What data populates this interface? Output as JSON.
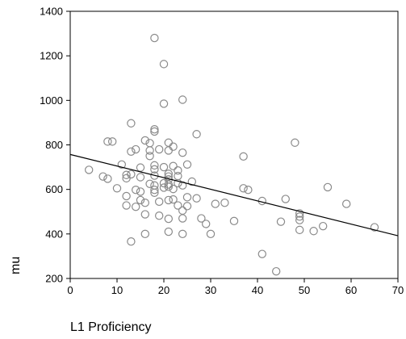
{
  "chart_data": {
    "type": "scatter",
    "title": "",
    "xlabel": "L1 Proficiency",
    "ylabel": "mu",
    "xlim": [
      0,
      70
    ],
    "ylim": [
      200,
      1400
    ],
    "xticks": [
      0,
      10,
      20,
      30,
      40,
      50,
      60,
      70
    ],
    "yticks": [
      200,
      400,
      600,
      800,
      1000,
      1200,
      1400
    ],
    "grid": false,
    "marker": "open-circle",
    "marker_color": "#8a8a8a",
    "line_color": "#000000",
    "regression_line": {
      "x": [
        0,
        70
      ],
      "y": [
        757,
        392
      ]
    },
    "points": [
      [
        18,
        1280
      ],
      [
        20,
        1163
      ],
      [
        20,
        985
      ],
      [
        24,
        1003
      ],
      [
        27,
        848
      ],
      [
        48,
        810
      ],
      [
        8,
        815
      ],
      [
        9,
        815
      ],
      [
        13,
        897
      ],
      [
        16,
        820
      ],
      [
        17,
        808
      ],
      [
        18,
        860
      ],
      [
        18,
        870
      ],
      [
        21,
        810
      ],
      [
        22,
        792
      ],
      [
        24,
        765
      ],
      [
        13,
        770
      ],
      [
        14,
        780
      ],
      [
        17,
        775
      ],
      [
        19,
        780
      ],
      [
        17,
        750
      ],
      [
        21,
        775
      ],
      [
        37,
        748
      ],
      [
        11,
        712
      ],
      [
        15,
        698
      ],
      [
        18,
        708
      ],
      [
        18,
        690
      ],
      [
        20,
        700
      ],
      [
        22,
        705
      ],
      [
        25,
        712
      ],
      [
        4,
        688
      ],
      [
        7,
        658
      ],
      [
        8,
        648
      ],
      [
        12,
        665
      ],
      [
        12,
        650
      ],
      [
        13,
        668
      ],
      [
        15,
        655
      ],
      [
        18,
        662
      ],
      [
        21,
        670
      ],
      [
        21,
        658
      ],
      [
        21,
        645
      ],
      [
        23,
        685
      ],
      [
        23,
        660
      ],
      [
        26,
        635
      ],
      [
        17,
        625
      ],
      [
        18,
        618
      ],
      [
        20,
        608
      ],
      [
        20,
        628
      ],
      [
        21,
        622
      ],
      [
        21,
        612
      ],
      [
        22,
        602
      ],
      [
        23,
        628
      ],
      [
        24,
        618
      ],
      [
        10,
        605
      ],
      [
        14,
        598
      ],
      [
        15,
        590
      ],
      [
        18,
        598
      ],
      [
        18,
        585
      ],
      [
        37,
        605
      ],
      [
        38,
        598
      ],
      [
        55,
        610
      ],
      [
        12,
        570
      ],
      [
        15,
        552
      ],
      [
        16,
        540
      ],
      [
        19,
        545
      ],
      [
        21,
        552
      ],
      [
        22,
        555
      ],
      [
        25,
        565
      ],
      [
        27,
        560
      ],
      [
        12,
        528
      ],
      [
        14,
        522
      ],
      [
        23,
        528
      ],
      [
        25,
        525
      ],
      [
        24,
        505
      ],
      [
        31,
        535
      ],
      [
        33,
        540
      ],
      [
        41,
        548
      ],
      [
        46,
        557
      ],
      [
        59,
        535
      ],
      [
        16,
        488
      ],
      [
        19,
        482
      ],
      [
        21,
        468
      ],
      [
        24,
        470
      ],
      [
        28,
        470
      ],
      [
        29,
        445
      ],
      [
        35,
        458
      ],
      [
        45,
        455
      ],
      [
        49,
        478
      ],
      [
        49,
        462
      ],
      [
        49,
        492
      ],
      [
        16,
        400
      ],
      [
        21,
        410
      ],
      [
        24,
        400
      ],
      [
        30,
        400
      ],
      [
        13,
        366
      ],
      [
        49,
        418
      ],
      [
        52,
        413
      ],
      [
        54,
        435
      ],
      [
        65,
        430
      ],
      [
        41,
        310
      ],
      [
        44,
        232
      ]
    ]
  }
}
